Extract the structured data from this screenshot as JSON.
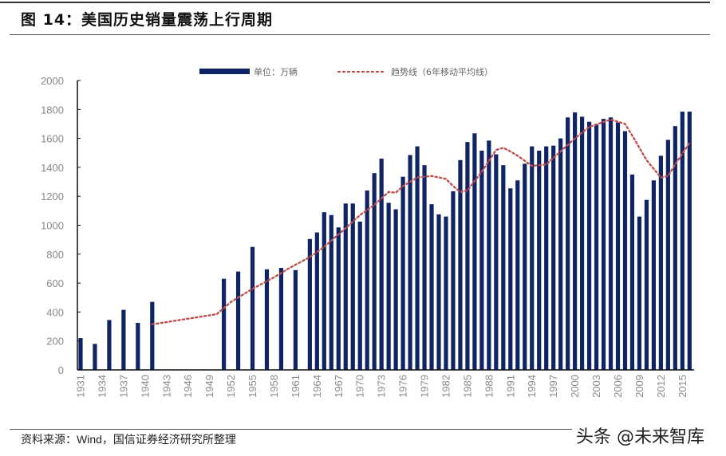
{
  "title": "图 14：美国历史销量震荡上行周期",
  "source": "资料来源：Wind，国信证券经济研究所整理",
  "watermark": "头条 @未来智库",
  "chart_data": {
    "type": "bar",
    "title": "",
    "xlabel": "",
    "ylabel": "",
    "ylim": [
      0,
      2000
    ],
    "yticks": [
      0,
      200,
      400,
      600,
      800,
      1000,
      1200,
      1400,
      1600,
      1800,
      2000
    ],
    "xticks": [
      "1931",
      "1934",
      "1937",
      "1940",
      "1943",
      "1946",
      "1949",
      "1952",
      "1955",
      "1958",
      "1961",
      "1964",
      "1967",
      "1970",
      "1973",
      "1976",
      "1979",
      "1982",
      "1985",
      "1988",
      "1991",
      "1994",
      "1997",
      "2000",
      "2003",
      "2006",
      "2009",
      "2012",
      "2015"
    ],
    "xrange": [
      1931,
      2016
    ],
    "legend_placement": "top",
    "grid": false,
    "colors": {
      "bars": "#0f2464",
      "trend": "#c0504d"
    },
    "series": [
      {
        "name": "单位：万辆",
        "type": "bar",
        "x": [
          1931,
          1933,
          1935,
          1937,
          1939,
          1941,
          1951,
          1953,
          1955,
          1957,
          1959,
          1961,
          1963,
          1964,
          1965,
          1966,
          1967,
          1968,
          1969,
          1970,
          1971,
          1972,
          1973,
          1974,
          1975,
          1976,
          1977,
          1978,
          1979,
          1980,
          1981,
          1982,
          1983,
          1984,
          1985,
          1986,
          1987,
          1988,
          1989,
          1990,
          1991,
          1992,
          1993,
          1994,
          1995,
          1996,
          1997,
          1998,
          1999,
          2000,
          2001,
          2002,
          2003,
          2004,
          2005,
          2006,
          2007,
          2008,
          2009,
          2010,
          2011,
          2012,
          2013,
          2014,
          2015,
          2016
        ],
        "values": [
          220,
          180,
          345,
          415,
          325,
          470,
          630,
          680,
          850,
          695,
          705,
          690,
          905,
          950,
          1090,
          1070,
          985,
          1150,
          1150,
          1025,
          1240,
          1360,
          1460,
          1155,
          1110,
          1335,
          1485,
          1545,
          1415,
          1145,
          1075,
          1060,
          1235,
          1450,
          1575,
          1635,
          1515,
          1585,
          1490,
          1415,
          1255,
          1310,
          1425,
          1545,
          1515,
          1545,
          1550,
          1600,
          1745,
          1780,
          1750,
          1715,
          1695,
          1735,
          1745,
          1710,
          1650,
          1350,
          1060,
          1175,
          1310,
          1480,
          1590,
          1685,
          1785,
          1785
        ]
      },
      {
        "name": "趋势线（6年移动平均线）",
        "type": "line",
        "style": "dotted",
        "x": [
          1941,
          1950,
          1952,
          1955,
          1958,
          1960,
          1963,
          1965,
          1968,
          1970,
          1972,
          1974,
          1975,
          1976,
          1978,
          1980,
          1982,
          1983,
          1984,
          1985,
          1987,
          1989,
          1990,
          1991,
          1992,
          1994,
          1996,
          1998,
          2000,
          2002,
          2005,
          2007,
          2008,
          2010,
          2012,
          2013,
          2014,
          2016
        ],
        "values": [
          315,
          385,
          470,
          560,
          640,
          700,
          780,
          850,
          980,
          1070,
          1140,
          1230,
          1225,
          1270,
          1330,
          1340,
          1320,
          1270,
          1230,
          1240,
          1370,
          1520,
          1535,
          1510,
          1480,
          1410,
          1420,
          1510,
          1600,
          1680,
          1730,
          1700,
          1620,
          1450,
          1330,
          1340,
          1420,
          1570
        ]
      }
    ]
  }
}
